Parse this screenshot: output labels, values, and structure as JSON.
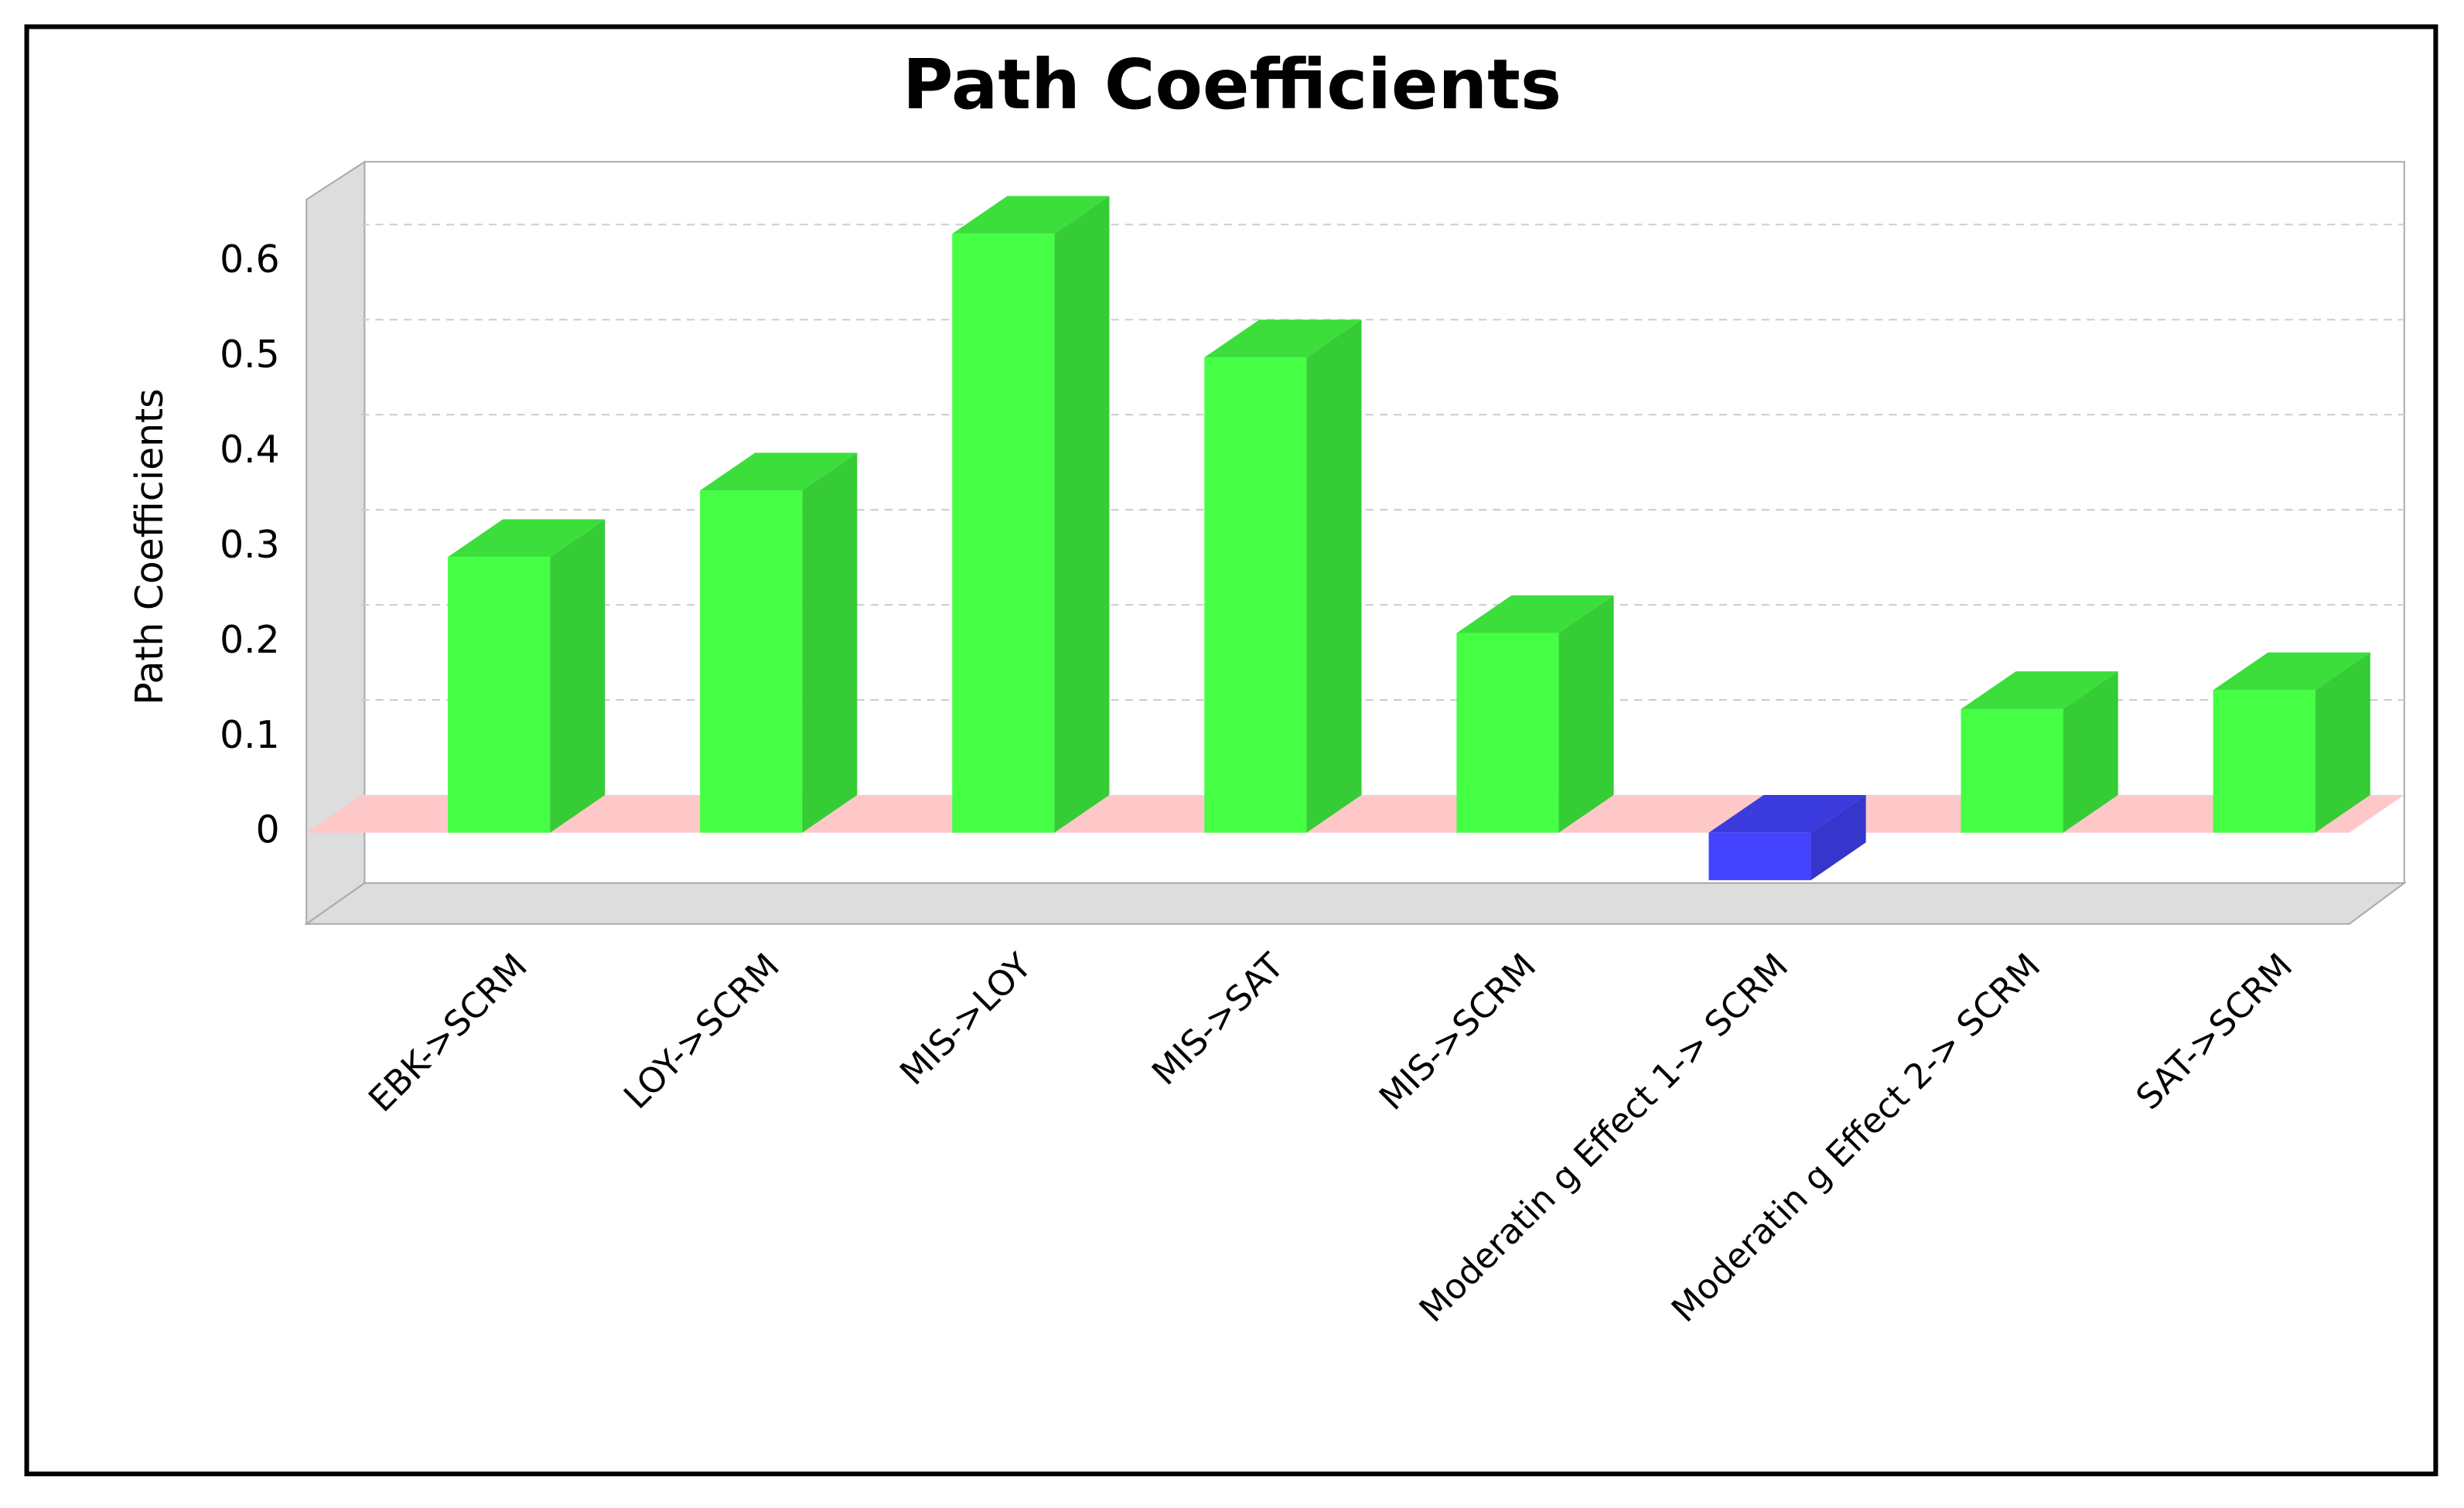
{
  "chart_data": {
    "type": "bar3d",
    "title": "Path Coefficients",
    "y_label": "Path Coefficients",
    "categories": [
      "EBK->SCRM",
      "LOY->SCRM",
      "MIS->LOY",
      "MIS->SAT",
      "MIS->SCRM",
      "Moderatin g Effect 1-> SCRM",
      "Moderatin g Effect 2-> SCRM",
      "SAT->SCRM"
    ],
    "values": [
      0.29,
      0.36,
      0.63,
      0.5,
      0.21,
      -0.05,
      0.13,
      0.15
    ],
    "color": "#44ff44",
    "negative_color": "#4444ff",
    "ylim": [
      -0.096,
      0.666
    ],
    "yticks": [
      0,
      0.1,
      0.2,
      0.3,
      0.4,
      0.5,
      0.6
    ],
    "grid": true
  }
}
